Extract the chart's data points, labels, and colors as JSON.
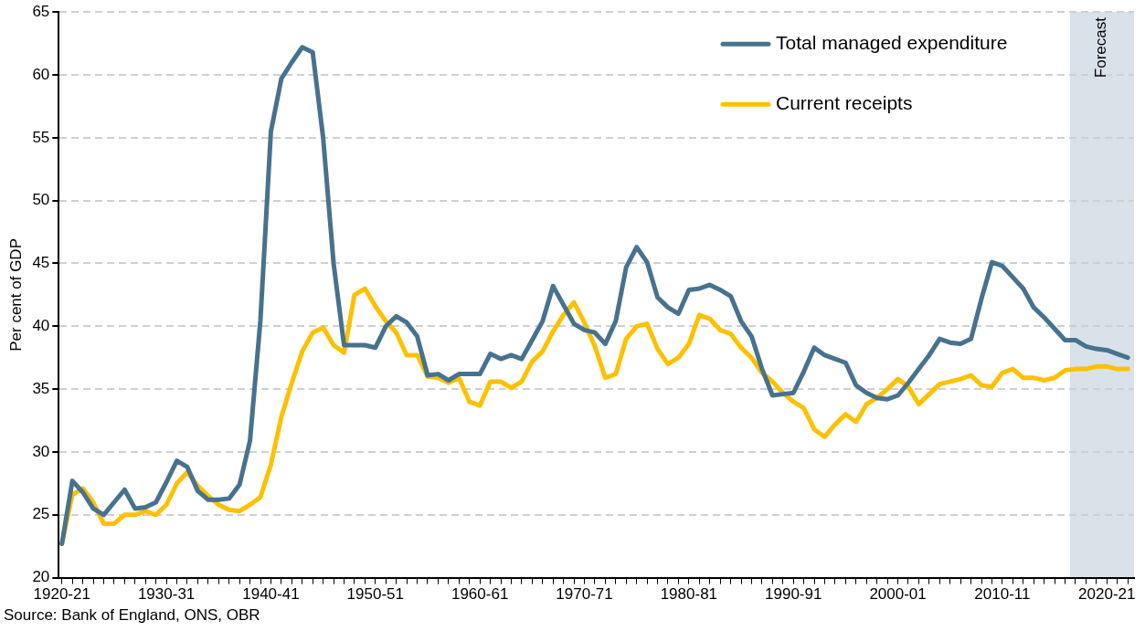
{
  "chart_data": {
    "type": "line",
    "ylabel": "Per cent of GDP",
    "categories": [
      "1920-21",
      null,
      null,
      null,
      null,
      null,
      null,
      null,
      null,
      null,
      "1930-31",
      null,
      null,
      null,
      null,
      null,
      null,
      null,
      null,
      null,
      "1940-41",
      null,
      null,
      null,
      null,
      null,
      null,
      null,
      null,
      null,
      "1950-51",
      null,
      null,
      null,
      null,
      null,
      null,
      null,
      null,
      null,
      "1960-61",
      null,
      null,
      null,
      null,
      null,
      null,
      null,
      null,
      null,
      "1970-71",
      null,
      null,
      null,
      null,
      null,
      null,
      null,
      null,
      null,
      "1980-81",
      null,
      null,
      null,
      null,
      null,
      null,
      null,
      null,
      null,
      "1990-91",
      null,
      null,
      null,
      null,
      null,
      null,
      null,
      null,
      null,
      "2000-01",
      null,
      null,
      null,
      null,
      null,
      null,
      null,
      null,
      null,
      "2010-11",
      null,
      null,
      null,
      null,
      null,
      null,
      null,
      null,
      null,
      "2020-21",
      null,
      null
    ],
    "series": [
      {
        "name": "Total managed expenditure",
        "color": "#47728f",
        "values": [
          22.7,
          27.7,
          26.8,
          25.5,
          25.0,
          26.0,
          27.0,
          25.5,
          25.6,
          26.0,
          27.6,
          29.3,
          28.8,
          26.9,
          26.2,
          26.2,
          26.3,
          27.4,
          30.9,
          40.5,
          55.5,
          59.7,
          61.0,
          62.2,
          61.8,
          55.0,
          45.0,
          38.5,
          38.5,
          38.5,
          38.3,
          40.0,
          40.8,
          40.3,
          39.2,
          36.1,
          36.2,
          35.7,
          36.2,
          36.2,
          36.2,
          37.8,
          37.4,
          37.7,
          37.4,
          38.9,
          40.4,
          43.2,
          41.7,
          40.2,
          39.7,
          39.5,
          38.6,
          40.4,
          44.7,
          46.3,
          45.1,
          42.3,
          41.5,
          41.0,
          42.9,
          43.0,
          43.3,
          42.9,
          42.4,
          40.4,
          39.2,
          36.6,
          34.5,
          34.6,
          34.7,
          36.4,
          38.3,
          37.7,
          37.4,
          37.1,
          35.3,
          34.7,
          34.3,
          34.2,
          34.5,
          35.5,
          36.6,
          37.7,
          39.0,
          38.7,
          38.6,
          39.0,
          42.2,
          45.1,
          44.8,
          43.9,
          43.0,
          41.5,
          40.7,
          39.8,
          38.9,
          38.9,
          38.4,
          38.2,
          38.1,
          37.8,
          37.5
        ]
      },
      {
        "name": "Current receipts",
        "color": "#ffc000",
        "values": [
          22.7,
          26.6,
          27.1,
          26.0,
          24.3,
          24.3,
          25.0,
          25.0,
          25.3,
          25.0,
          25.8,
          27.5,
          28.4,
          27.3,
          26.5,
          25.8,
          25.4,
          25.3,
          25.8,
          26.4,
          29.0,
          32.8,
          35.5,
          38.0,
          39.5,
          39.9,
          38.5,
          37.9,
          42.5,
          43.0,
          41.6,
          40.4,
          39.5,
          37.7,
          37.7,
          36.0,
          35.9,
          35.5,
          35.9,
          34.0,
          33.7,
          35.6,
          35.6,
          35.1,
          35.6,
          37.2,
          38.0,
          39.6,
          40.9,
          41.9,
          40.3,
          38.4,
          35.9,
          36.2,
          39.0,
          40.0,
          40.2,
          38.2,
          37.0,
          37.5,
          38.6,
          40.9,
          40.6,
          39.7,
          39.4,
          38.3,
          37.5,
          36.3,
          35.6,
          34.7,
          34.0,
          33.5,
          31.8,
          31.2,
          32.2,
          33.0,
          32.4,
          33.8,
          34.3,
          35.0,
          35.8,
          35.2,
          33.8,
          34.6,
          35.4,
          35.6,
          35.8,
          36.1,
          35.3,
          35.2,
          36.3,
          36.6,
          35.9,
          35.9,
          35.7,
          35.9,
          36.5,
          36.6,
          36.6,
          36.8,
          36.8,
          36.6,
          36.6
        ]
      }
    ],
    "ylim": [
      20,
      65
    ],
    "yticks": [
      20,
      25,
      30,
      35,
      40,
      45,
      50,
      55,
      60,
      65
    ],
    "grid": "y",
    "legend": "top right",
    "annotations": [
      "Forecast",
      "Source: Bank of England, ONS, OBR"
    ]
  }
}
